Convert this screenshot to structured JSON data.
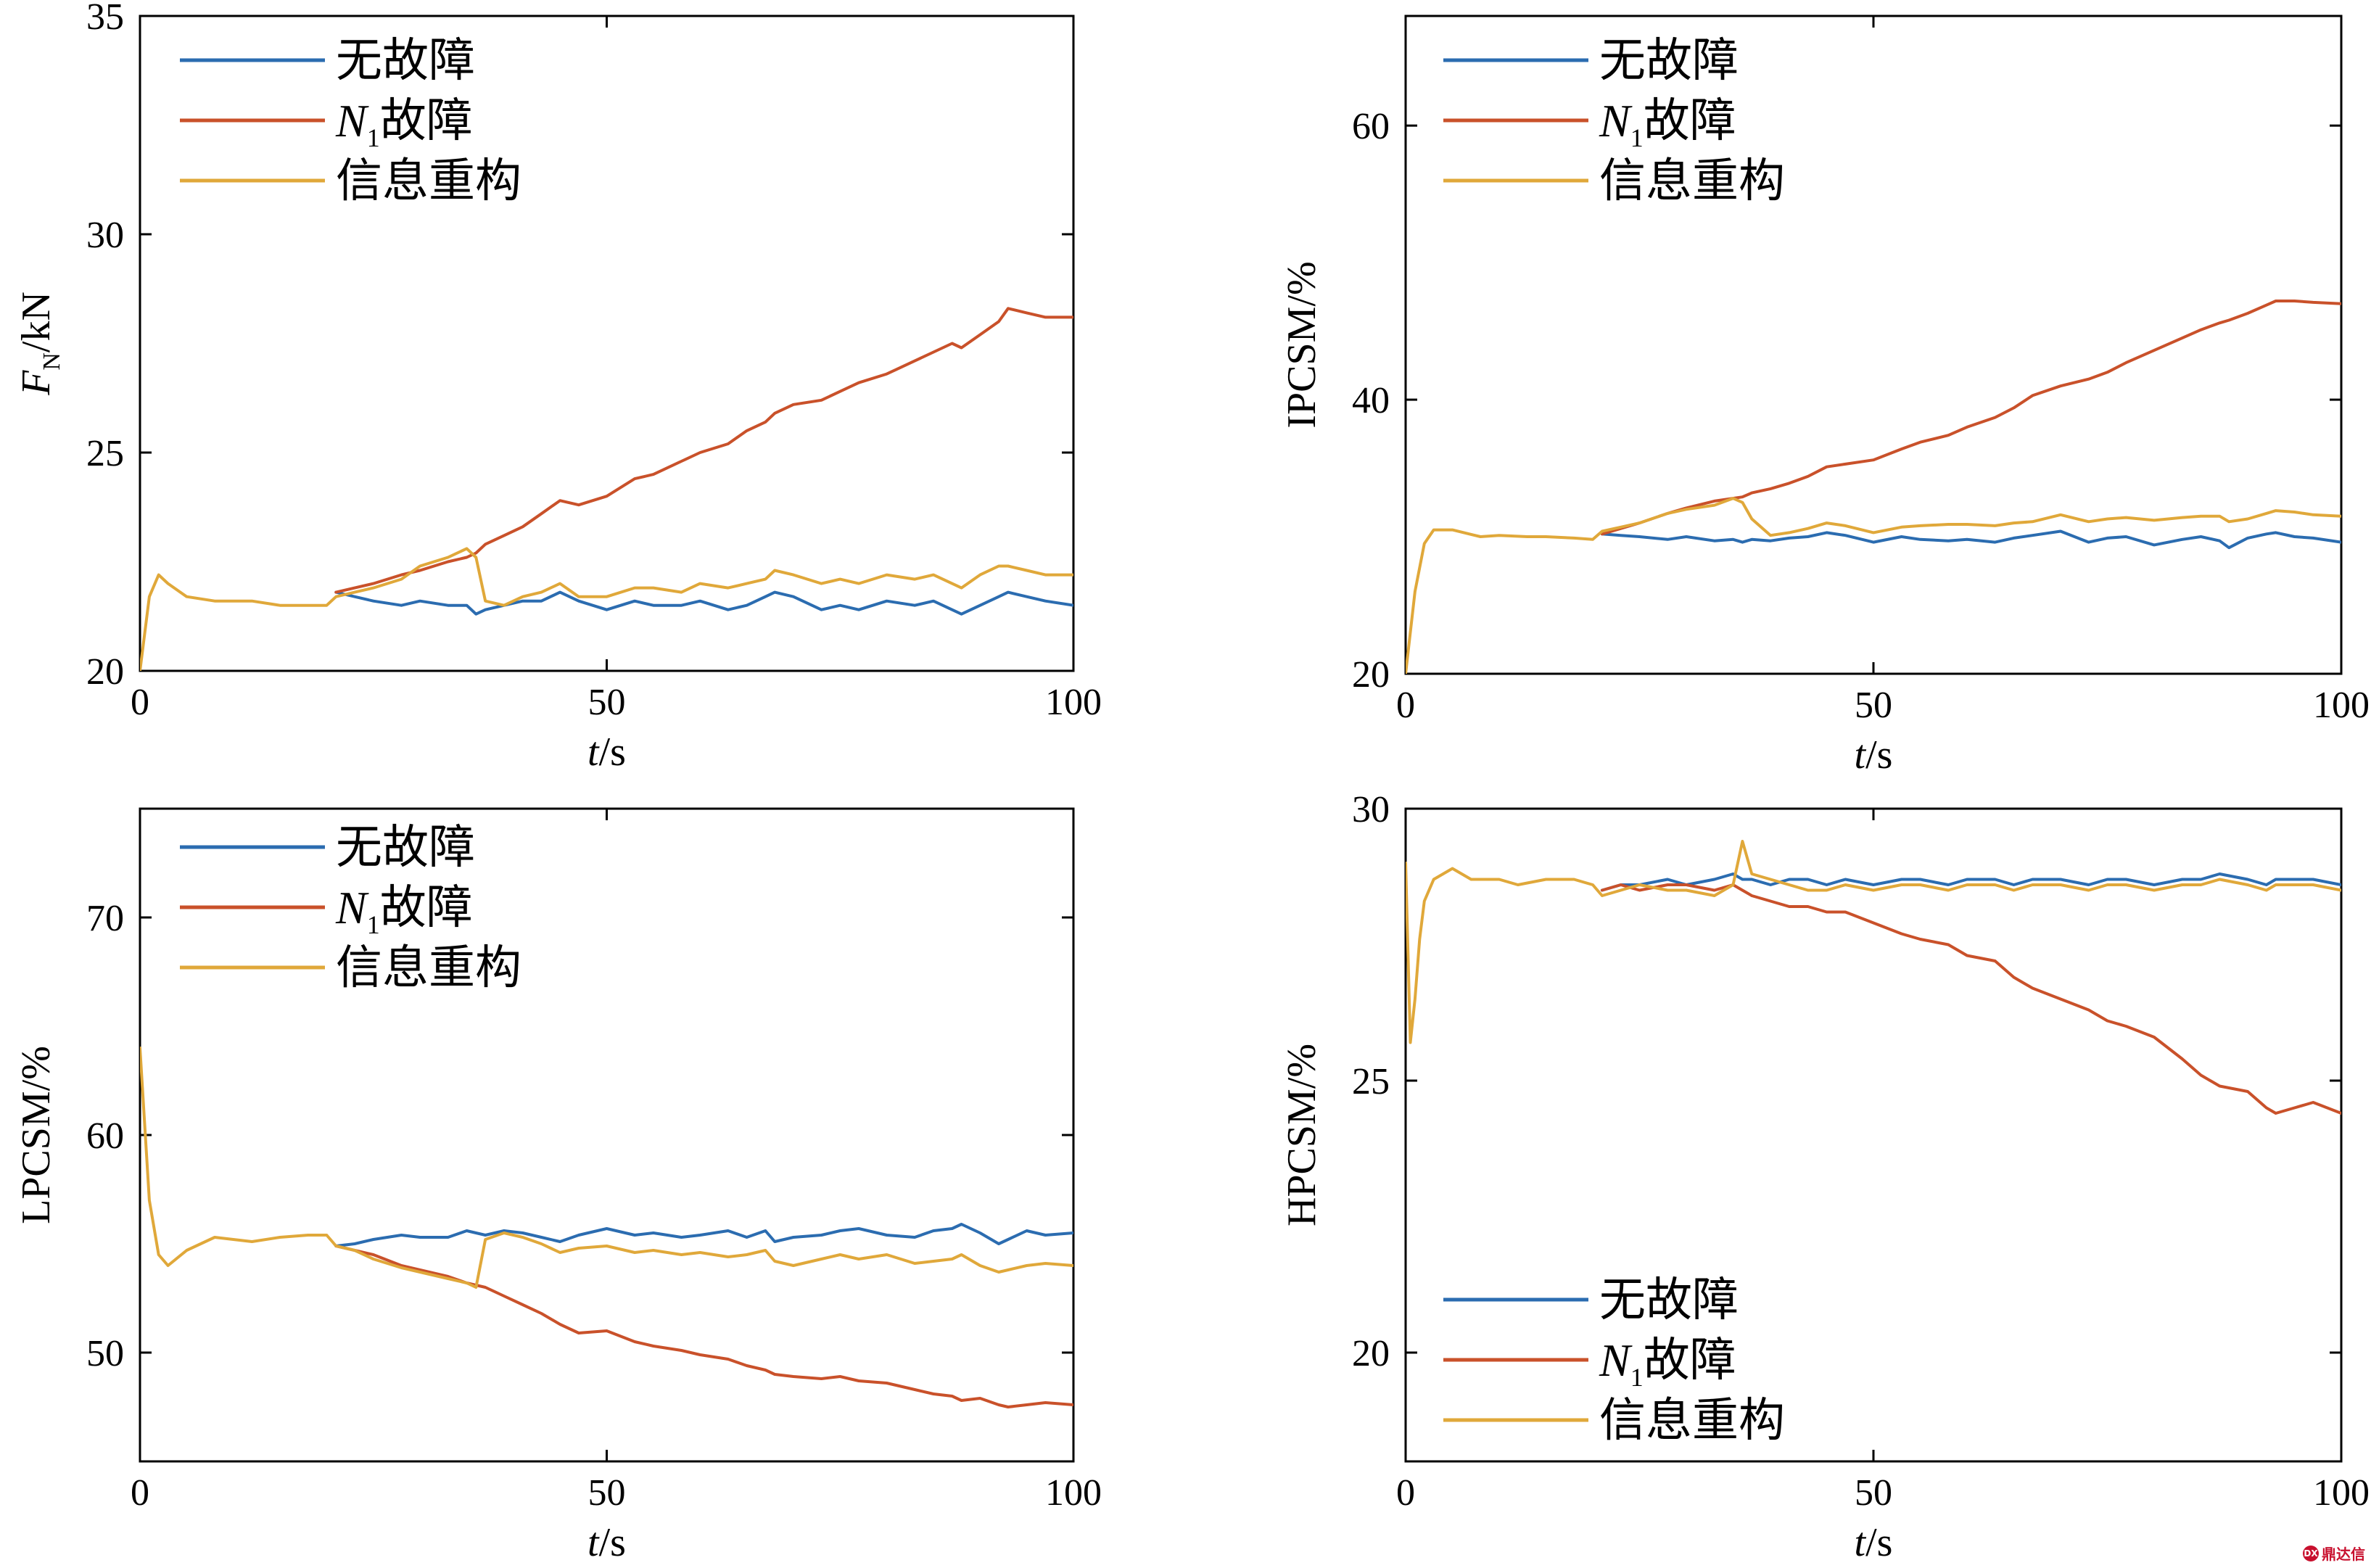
{
  "colors": {
    "no_fault": "#2b6cb0",
    "n1_fault": "#c9512a",
    "reconstruction": "#e0a83a"
  },
  "legend_labels": {
    "no_fault": "无故障",
    "n1_fault_sym": "N",
    "n1_fault_sub": "1",
    "n1_fault_text": "故障",
    "reconstruction": "信息重构"
  },
  "watermark": {
    "badge": "DX",
    "text": "鼎达信"
  },
  "chart_data": [
    {
      "id": "fn",
      "type": "line",
      "xlabel": "t/s",
      "xlabel_sym": "t",
      "xlabel_unit": "/s",
      "ylabel_sym": "F",
      "ylabel_sub": "N",
      "ylabel_unit": "/kN",
      "xlim": [
        0,
        100
      ],
      "ylim": [
        20,
        35
      ],
      "xticks": [
        0,
        50,
        100
      ],
      "yticks": [
        20,
        25,
        30,
        35
      ],
      "legend": "top-left",
      "x": [
        0,
        1,
        2,
        3,
        5,
        8,
        10,
        12,
        15,
        18,
        20,
        21,
        23,
        25,
        28,
        30,
        33,
        35,
        36,
        37,
        39,
        41,
        43,
        45,
        47,
        50,
        53,
        55,
        58,
        60,
        63,
        65,
        67,
        68,
        70,
        73,
        75,
        77,
        80,
        83,
        85,
        87,
        88,
        90,
        92,
        93,
        95,
        97,
        100
      ],
      "series": [
        {
          "name": "无故障",
          "key": "no_fault",
          "values": [
            null,
            null,
            null,
            null,
            null,
            null,
            null,
            null,
            null,
            null,
            null,
            21.8,
            21.7,
            21.6,
            21.5,
            21.6,
            21.5,
            21.5,
            21.3,
            21.4,
            21.5,
            21.6,
            21.6,
            21.8,
            21.6,
            21.4,
            21.6,
            21.5,
            21.5,
            21.6,
            21.4,
            21.5,
            21.7,
            21.8,
            21.7,
            21.4,
            21.5,
            21.4,
            21.6,
            21.5,
            21.6,
            21.4,
            21.3,
            21.5,
            21.7,
            21.8,
            21.7,
            21.6,
            21.5
          ]
        },
        {
          "name": "N1故障",
          "key": "n1_fault",
          "values": [
            null,
            null,
            null,
            null,
            null,
            null,
            null,
            null,
            null,
            null,
            null,
            21.8,
            21.9,
            22.0,
            22.2,
            22.3,
            22.5,
            22.6,
            22.7,
            22.9,
            23.1,
            23.3,
            23.6,
            23.9,
            23.8,
            24.0,
            24.4,
            24.5,
            24.8,
            25.0,
            25.2,
            25.5,
            25.7,
            25.9,
            26.1,
            26.2,
            26.4,
            26.6,
            26.8,
            27.1,
            27.3,
            27.5,
            27.4,
            27.7,
            28.0,
            28.3,
            28.2,
            28.1,
            28.1
          ]
        },
        {
          "name": "信息重构",
          "key": "reconstruction",
          "values": [
            20.0,
            21.7,
            22.2,
            22.0,
            21.7,
            21.6,
            21.6,
            21.6,
            21.5,
            21.5,
            21.5,
            21.7,
            21.8,
            21.9,
            22.1,
            22.4,
            22.6,
            22.8,
            22.6,
            21.6,
            21.5,
            21.7,
            21.8,
            22.0,
            21.7,
            21.7,
            21.9,
            21.9,
            21.8,
            22.0,
            21.9,
            22.0,
            22.1,
            22.3,
            22.2,
            22.0,
            22.1,
            22.0,
            22.2,
            22.1,
            22.2,
            22.0,
            21.9,
            22.2,
            22.4,
            22.4,
            22.3,
            22.2,
            22.2
          ]
        }
      ]
    },
    {
      "id": "ipcsm",
      "type": "line",
      "xlabel": "t/s",
      "xlabel_sym": "t",
      "xlabel_unit": "/s",
      "ylabel": "IPCSM/%",
      "xlim": [
        0,
        100
      ],
      "ylim": [
        20,
        68
      ],
      "xticks": [
        0,
        50,
        100
      ],
      "yticks": [
        20,
        40,
        60
      ],
      "legend": "top-left",
      "x": [
        0,
        1,
        2,
        3,
        5,
        8,
        10,
        13,
        15,
        18,
        20,
        21,
        23,
        25,
        28,
        30,
        33,
        35,
        36,
        37,
        39,
        41,
        43,
        45,
        47,
        50,
        53,
        55,
        58,
        60,
        63,
        65,
        67,
        70,
        73,
        75,
        77,
        80,
        83,
        85,
        87,
        88,
        90,
        92,
        93,
        95,
        97,
        100
      ],
      "series": [
        {
          "name": "无故障",
          "key": "no_fault",
          "values": [
            null,
            null,
            null,
            null,
            null,
            null,
            null,
            null,
            null,
            null,
            null,
            30.2,
            30.1,
            30.0,
            29.8,
            30.0,
            29.7,
            29.8,
            29.6,
            29.8,
            29.7,
            29.9,
            30.0,
            30.3,
            30.1,
            29.6,
            30.0,
            29.8,
            29.7,
            29.8,
            29.6,
            29.9,
            30.1,
            30.4,
            29.6,
            29.9,
            30.0,
            29.4,
            29.8,
            30.0,
            29.7,
            29.2,
            29.9,
            30.2,
            30.3,
            30.0,
            29.9,
            29.6
          ]
        },
        {
          "name": "N1故障",
          "key": "n1_fault",
          "values": [
            null,
            null,
            null,
            null,
            null,
            null,
            null,
            null,
            null,
            null,
            null,
            30.2,
            30.6,
            31.0,
            31.7,
            32.1,
            32.6,
            32.8,
            32.9,
            33.2,
            33.5,
            33.9,
            34.4,
            35.1,
            35.3,
            35.6,
            36.4,
            36.9,
            37.4,
            38.0,
            38.7,
            39.4,
            40.3,
            41.0,
            41.5,
            42.0,
            42.7,
            43.6,
            44.5,
            45.1,
            45.6,
            45.8,
            46.3,
            46.9,
            47.2,
            47.2,
            47.1,
            47.0
          ]
        },
        {
          "name": "信息重构",
          "key": "reconstruction",
          "values": [
            20.0,
            26.0,
            29.5,
            30.5,
            30.5,
            30.0,
            30.1,
            30.0,
            30.0,
            29.9,
            29.8,
            30.4,
            30.7,
            31.0,
            31.7,
            32.0,
            32.3,
            32.8,
            32.5,
            31.3,
            30.1,
            30.3,
            30.6,
            31.0,
            30.8,
            30.3,
            30.7,
            30.8,
            30.9,
            30.9,
            30.8,
            31.0,
            31.1,
            31.6,
            31.1,
            31.3,
            31.4,
            31.2,
            31.4,
            31.5,
            31.5,
            31.1,
            31.3,
            31.7,
            31.9,
            31.8,
            31.6,
            31.5
          ]
        }
      ]
    },
    {
      "id": "lpcsm",
      "type": "line",
      "xlabel": "t/s",
      "xlabel_sym": "t",
      "xlabel_unit": "/s",
      "ylabel": "LPCSM/%",
      "xlim": [
        0,
        100
      ],
      "ylim": [
        45,
        75
      ],
      "xticks": [
        0,
        50,
        100
      ],
      "yticks": [
        50,
        60,
        70
      ],
      "legend": "top-left",
      "x": [
        0,
        1,
        2,
        3,
        5,
        8,
        10,
        12,
        15,
        18,
        20,
        21,
        23,
        25,
        28,
        30,
        33,
        35,
        36,
        37,
        39,
        41,
        43,
        45,
        47,
        50,
        53,
        55,
        58,
        60,
        63,
        65,
        67,
        68,
        70,
        73,
        75,
        77,
        80,
        83,
        85,
        87,
        88,
        90,
        92,
        93,
        95,
        97,
        100
      ],
      "series": [
        {
          "name": "无故障",
          "key": "no_fault",
          "values": [
            null,
            null,
            null,
            null,
            null,
            null,
            null,
            null,
            null,
            null,
            null,
            54.9,
            55.0,
            55.2,
            55.4,
            55.3,
            55.3,
            55.6,
            55.5,
            55.4,
            55.6,
            55.5,
            55.3,
            55.1,
            55.4,
            55.7,
            55.4,
            55.5,
            55.3,
            55.4,
            55.6,
            55.3,
            55.6,
            55.1,
            55.3,
            55.4,
            55.6,
            55.7,
            55.4,
            55.3,
            55.6,
            55.7,
            55.9,
            55.5,
            55.0,
            55.2,
            55.6,
            55.4,
            55.5
          ]
        },
        {
          "name": "N1故障",
          "key": "n1_fault",
          "values": [
            null,
            null,
            null,
            null,
            null,
            null,
            null,
            null,
            null,
            null,
            null,
            54.9,
            54.7,
            54.5,
            54.0,
            53.8,
            53.5,
            53.2,
            53.1,
            53.0,
            52.6,
            52.2,
            51.8,
            51.3,
            50.9,
            51.0,
            50.5,
            50.3,
            50.1,
            49.9,
            49.7,
            49.4,
            49.2,
            49.0,
            48.9,
            48.8,
            48.9,
            48.7,
            48.6,
            48.3,
            48.1,
            48.0,
            47.8,
            47.9,
            47.6,
            47.5,
            47.6,
            47.7,
            47.6
          ]
        },
        {
          "name": "信息重构",
          "key": "reconstruction",
          "values": [
            64.0,
            57.0,
            54.5,
            54.0,
            54.7,
            55.3,
            55.2,
            55.1,
            55.3,
            55.4,
            55.4,
            54.9,
            54.7,
            54.3,
            53.9,
            53.7,
            53.4,
            53.2,
            53.0,
            55.2,
            55.5,
            55.3,
            55.0,
            54.6,
            54.8,
            54.9,
            54.6,
            54.7,
            54.5,
            54.6,
            54.4,
            54.5,
            54.7,
            54.2,
            54.0,
            54.3,
            54.5,
            54.3,
            54.5,
            54.1,
            54.2,
            54.3,
            54.5,
            54.0,
            53.7,
            53.8,
            54.0,
            54.1,
            54.0
          ]
        }
      ]
    },
    {
      "id": "hpcsm",
      "type": "line",
      "xlabel": "t/s",
      "xlabel_sym": "t",
      "xlabel_unit": "/s",
      "ylabel": "HPCSM/%",
      "xlim": [
        0,
        100
      ],
      "ylim": [
        18,
        30
      ],
      "xticks": [
        0,
        50,
        100
      ],
      "yticks": [
        20,
        25,
        30
      ],
      "legend": "bottom-left",
      "x": [
        0,
        0.5,
        1,
        1.5,
        2,
        3,
        4,
        5,
        7,
        10,
        12,
        15,
        18,
        20,
        21,
        23,
        25,
        28,
        30,
        33,
        35,
        36,
        37,
        39,
        41,
        43,
        45,
        47,
        50,
        53,
        55,
        58,
        60,
        63,
        65,
        67,
        70,
        73,
        75,
        77,
        80,
        83,
        85,
        87,
        90,
        92,
        93,
        95,
        97,
        100
      ],
      "series": [
        {
          "name": "无故障",
          "key": "no_fault",
          "values": [
            null,
            null,
            null,
            null,
            null,
            null,
            null,
            null,
            null,
            null,
            null,
            null,
            null,
            null,
            28.5,
            28.6,
            28.6,
            28.7,
            28.6,
            28.7,
            28.8,
            28.7,
            28.7,
            28.6,
            28.7,
            28.7,
            28.6,
            28.7,
            28.6,
            28.7,
            28.7,
            28.6,
            28.7,
            28.7,
            28.6,
            28.7,
            28.7,
            28.6,
            28.7,
            28.7,
            28.6,
            28.7,
            28.7,
            28.8,
            28.7,
            28.6,
            28.7,
            28.7,
            28.7,
            28.6
          ]
        },
        {
          "name": "N1故障",
          "key": "n1_fault",
          "values": [
            null,
            null,
            null,
            null,
            null,
            null,
            null,
            null,
            null,
            null,
            null,
            null,
            null,
            null,
            28.5,
            28.6,
            28.5,
            28.6,
            28.6,
            28.5,
            28.6,
            28.5,
            28.4,
            28.3,
            28.2,
            28.2,
            28.1,
            28.1,
            27.9,
            27.7,
            27.6,
            27.5,
            27.3,
            27.2,
            26.9,
            26.7,
            26.5,
            26.3,
            26.1,
            26.0,
            25.8,
            25.4,
            25.1,
            24.9,
            24.8,
            24.5,
            24.4,
            24.5,
            24.6,
            24.4
          ]
        },
        {
          "name": "信息重构",
          "key": "reconstruction",
          "values": [
            29.0,
            25.7,
            26.5,
            27.6,
            28.3,
            28.7,
            28.8,
            28.9,
            28.7,
            28.7,
            28.6,
            28.7,
            28.7,
            28.6,
            28.4,
            28.5,
            28.6,
            28.5,
            28.5,
            28.4,
            28.6,
            29.4,
            28.8,
            28.7,
            28.6,
            28.5,
            28.5,
            28.6,
            28.5,
            28.6,
            28.6,
            28.5,
            28.6,
            28.6,
            28.5,
            28.6,
            28.6,
            28.5,
            28.6,
            28.6,
            28.5,
            28.6,
            28.6,
            28.7,
            28.6,
            28.5,
            28.6,
            28.6,
            28.6,
            28.5
          ]
        }
      ]
    }
  ]
}
